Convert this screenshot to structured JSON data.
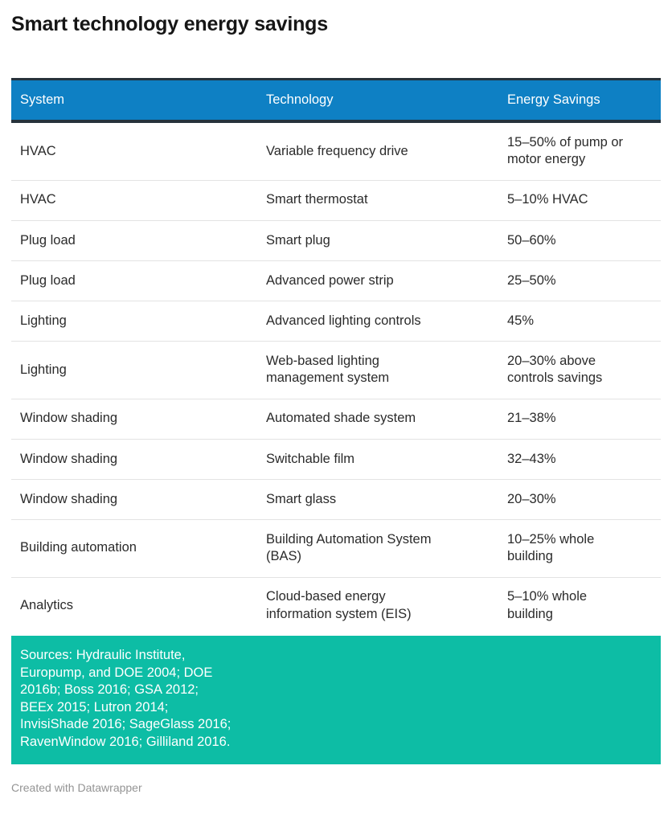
{
  "title": "Smart technology energy savings",
  "chart_data": {
    "type": "table",
    "title": "Smart technology energy savings",
    "columns": [
      "System",
      "Technology",
      "Energy Savings"
    ],
    "rows": [
      {
        "system": "HVAC",
        "technology": "Variable frequency drive",
        "savings": "15–50% of pump or motor energy"
      },
      {
        "system": "HVAC",
        "technology": "Smart thermostat",
        "savings": "5–10% HVAC"
      },
      {
        "system": "Plug load",
        "technology": "Smart plug",
        "savings": "50–60%"
      },
      {
        "system": "Plug load",
        "technology": "Advanced power strip",
        "savings": "25–50%"
      },
      {
        "system": "Lighting",
        "technology": "Advanced lighting controls",
        "savings": "45%"
      },
      {
        "system": "Lighting",
        "technology": "Web-based lighting management system",
        "savings": "20–30% above controls savings"
      },
      {
        "system": "Window shading",
        "technology": "Automated shade system",
        "savings": "21–38%"
      },
      {
        "system": "Window shading",
        "technology": "Switchable film",
        "savings": "32–43%"
      },
      {
        "system": "Window shading",
        "technology": "Smart glass",
        "savings": "20–30%"
      },
      {
        "system": "Building automation",
        "technology": "Building Automation System (BAS)",
        "savings": "10–25% whole building"
      },
      {
        "system": "Analytics",
        "technology": "Cloud-based energy information system (EIS)",
        "savings": "5–10% whole building"
      }
    ],
    "legend_position": "none",
    "grid": "horizontal-row-dividers"
  },
  "sources": "Sources: Hydraulic Institute, Europump, and DOE 2004; DOE 2016b; Boss 2016; GSA 2012; BEEx 2015; Lutron 2014; InvisiShade 2016; SageGlass 2016; RavenWindow 2016; Gilliland 2016.",
  "footer": {
    "credit": "Created with Datawrapper"
  },
  "colors": {
    "header_bg": "#0e80c4",
    "header_text": "#ffffff",
    "header_border": "#26323b",
    "row_divider": "#e3e3e3",
    "body_text": "#2b2b2b",
    "title_text": "#161616",
    "sources_bg": "#0dbda5",
    "sources_text": "#ffffff",
    "credit_text": "#949494"
  }
}
